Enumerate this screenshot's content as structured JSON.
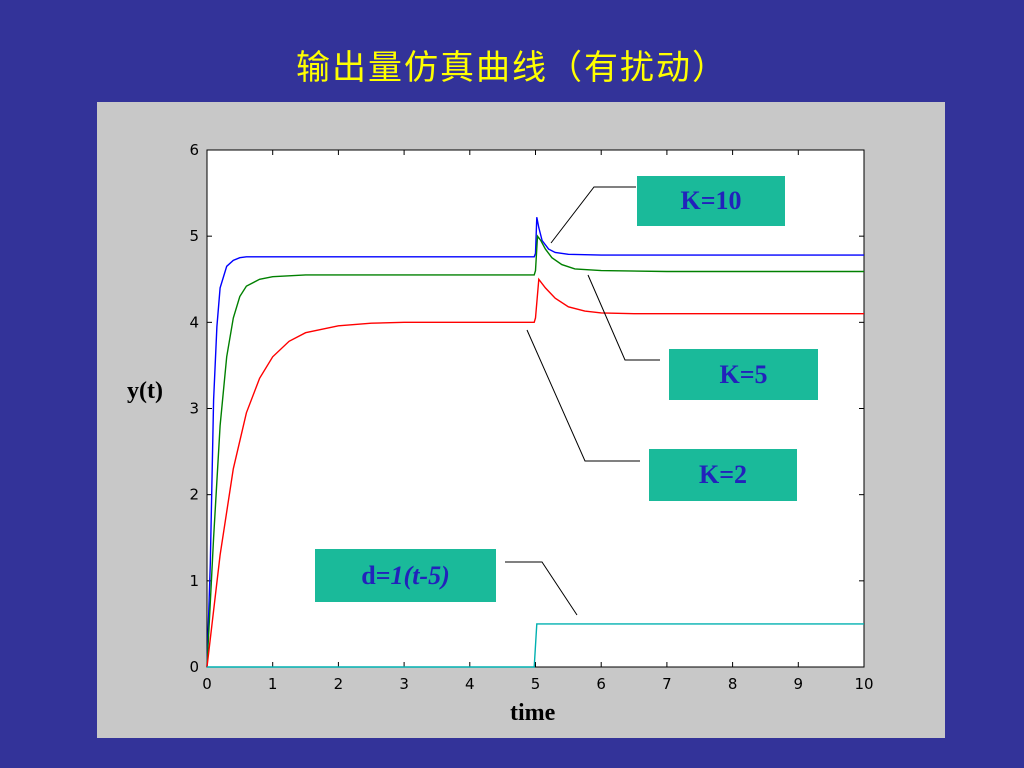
{
  "slide": {
    "title": "输出量仿真曲线（有扰动）"
  },
  "labels": {
    "k10": "K=10",
    "k5": "K=5",
    "k2": "K=2",
    "d_prefix": "d=",
    "d_italic": "1(t-5)"
  },
  "chart_data": {
    "type": "line",
    "xlabel": "time",
    "ylabel": "y(t)",
    "xlim": [
      0,
      10
    ],
    "ylim": [
      0,
      6
    ],
    "xticks": [
      0,
      1,
      2,
      3,
      4,
      5,
      6,
      7,
      8,
      9,
      10
    ],
    "yticks": [
      0,
      1,
      2,
      3,
      4,
      5,
      6
    ],
    "grid": false,
    "series": [
      {
        "name": "K=10",
        "color": "#0000ff",
        "x": [
          0,
          0.05,
          0.1,
          0.15,
          0.2,
          0.3,
          0.4,
          0.5,
          0.6,
          0.8,
          1,
          2,
          3,
          4,
          4.98,
          5.0,
          5.02,
          5.05,
          5.1,
          5.2,
          5.3,
          5.5,
          6,
          7,
          8,
          9,
          10
        ],
        "y": [
          0,
          1.2,
          3.1,
          3.95,
          4.4,
          4.65,
          4.72,
          4.75,
          4.76,
          4.76,
          4.76,
          4.76,
          4.76,
          4.76,
          4.76,
          4.8,
          5.22,
          5.1,
          4.95,
          4.85,
          4.81,
          4.79,
          4.78,
          4.78,
          4.78,
          4.78,
          4.78
        ]
      },
      {
        "name": "K=5",
        "color": "#008000",
        "x": [
          0,
          0.1,
          0.2,
          0.3,
          0.4,
          0.5,
          0.6,
          0.8,
          1,
          1.5,
          2,
          3,
          4,
          4.98,
          5.0,
          5.03,
          5.08,
          5.15,
          5.25,
          5.4,
          5.6,
          6,
          7,
          8,
          9,
          10
        ],
        "y": [
          0,
          1.5,
          2.8,
          3.6,
          4.05,
          4.3,
          4.42,
          4.5,
          4.53,
          4.55,
          4.55,
          4.55,
          4.55,
          4.55,
          4.6,
          5.0,
          4.95,
          4.85,
          4.75,
          4.67,
          4.62,
          4.6,
          4.59,
          4.59,
          4.59,
          4.59
        ]
      },
      {
        "name": "K=2",
        "color": "#ff0000",
        "x": [
          0,
          0.2,
          0.4,
          0.6,
          0.8,
          1,
          1.25,
          1.5,
          2,
          2.5,
          3,
          3.5,
          4,
          4.98,
          5.0,
          5.05,
          5.15,
          5.3,
          5.5,
          5.75,
          6,
          6.5,
          7,
          8,
          9,
          10
        ],
        "y": [
          0,
          1.3,
          2.3,
          2.95,
          3.35,
          3.6,
          3.78,
          3.88,
          3.96,
          3.99,
          4.0,
          4.0,
          4.0,
          4.0,
          4.05,
          4.5,
          4.4,
          4.28,
          4.18,
          4.13,
          4.11,
          4.1,
          4.1,
          4.1,
          4.1,
          4.1
        ]
      },
      {
        "name": "d=1(t-5)",
        "color": "#00b0b0",
        "x": [
          0,
          4.98,
          5.02,
          10
        ],
        "y": [
          0,
          0,
          0.5,
          0.5
        ]
      }
    ]
  }
}
